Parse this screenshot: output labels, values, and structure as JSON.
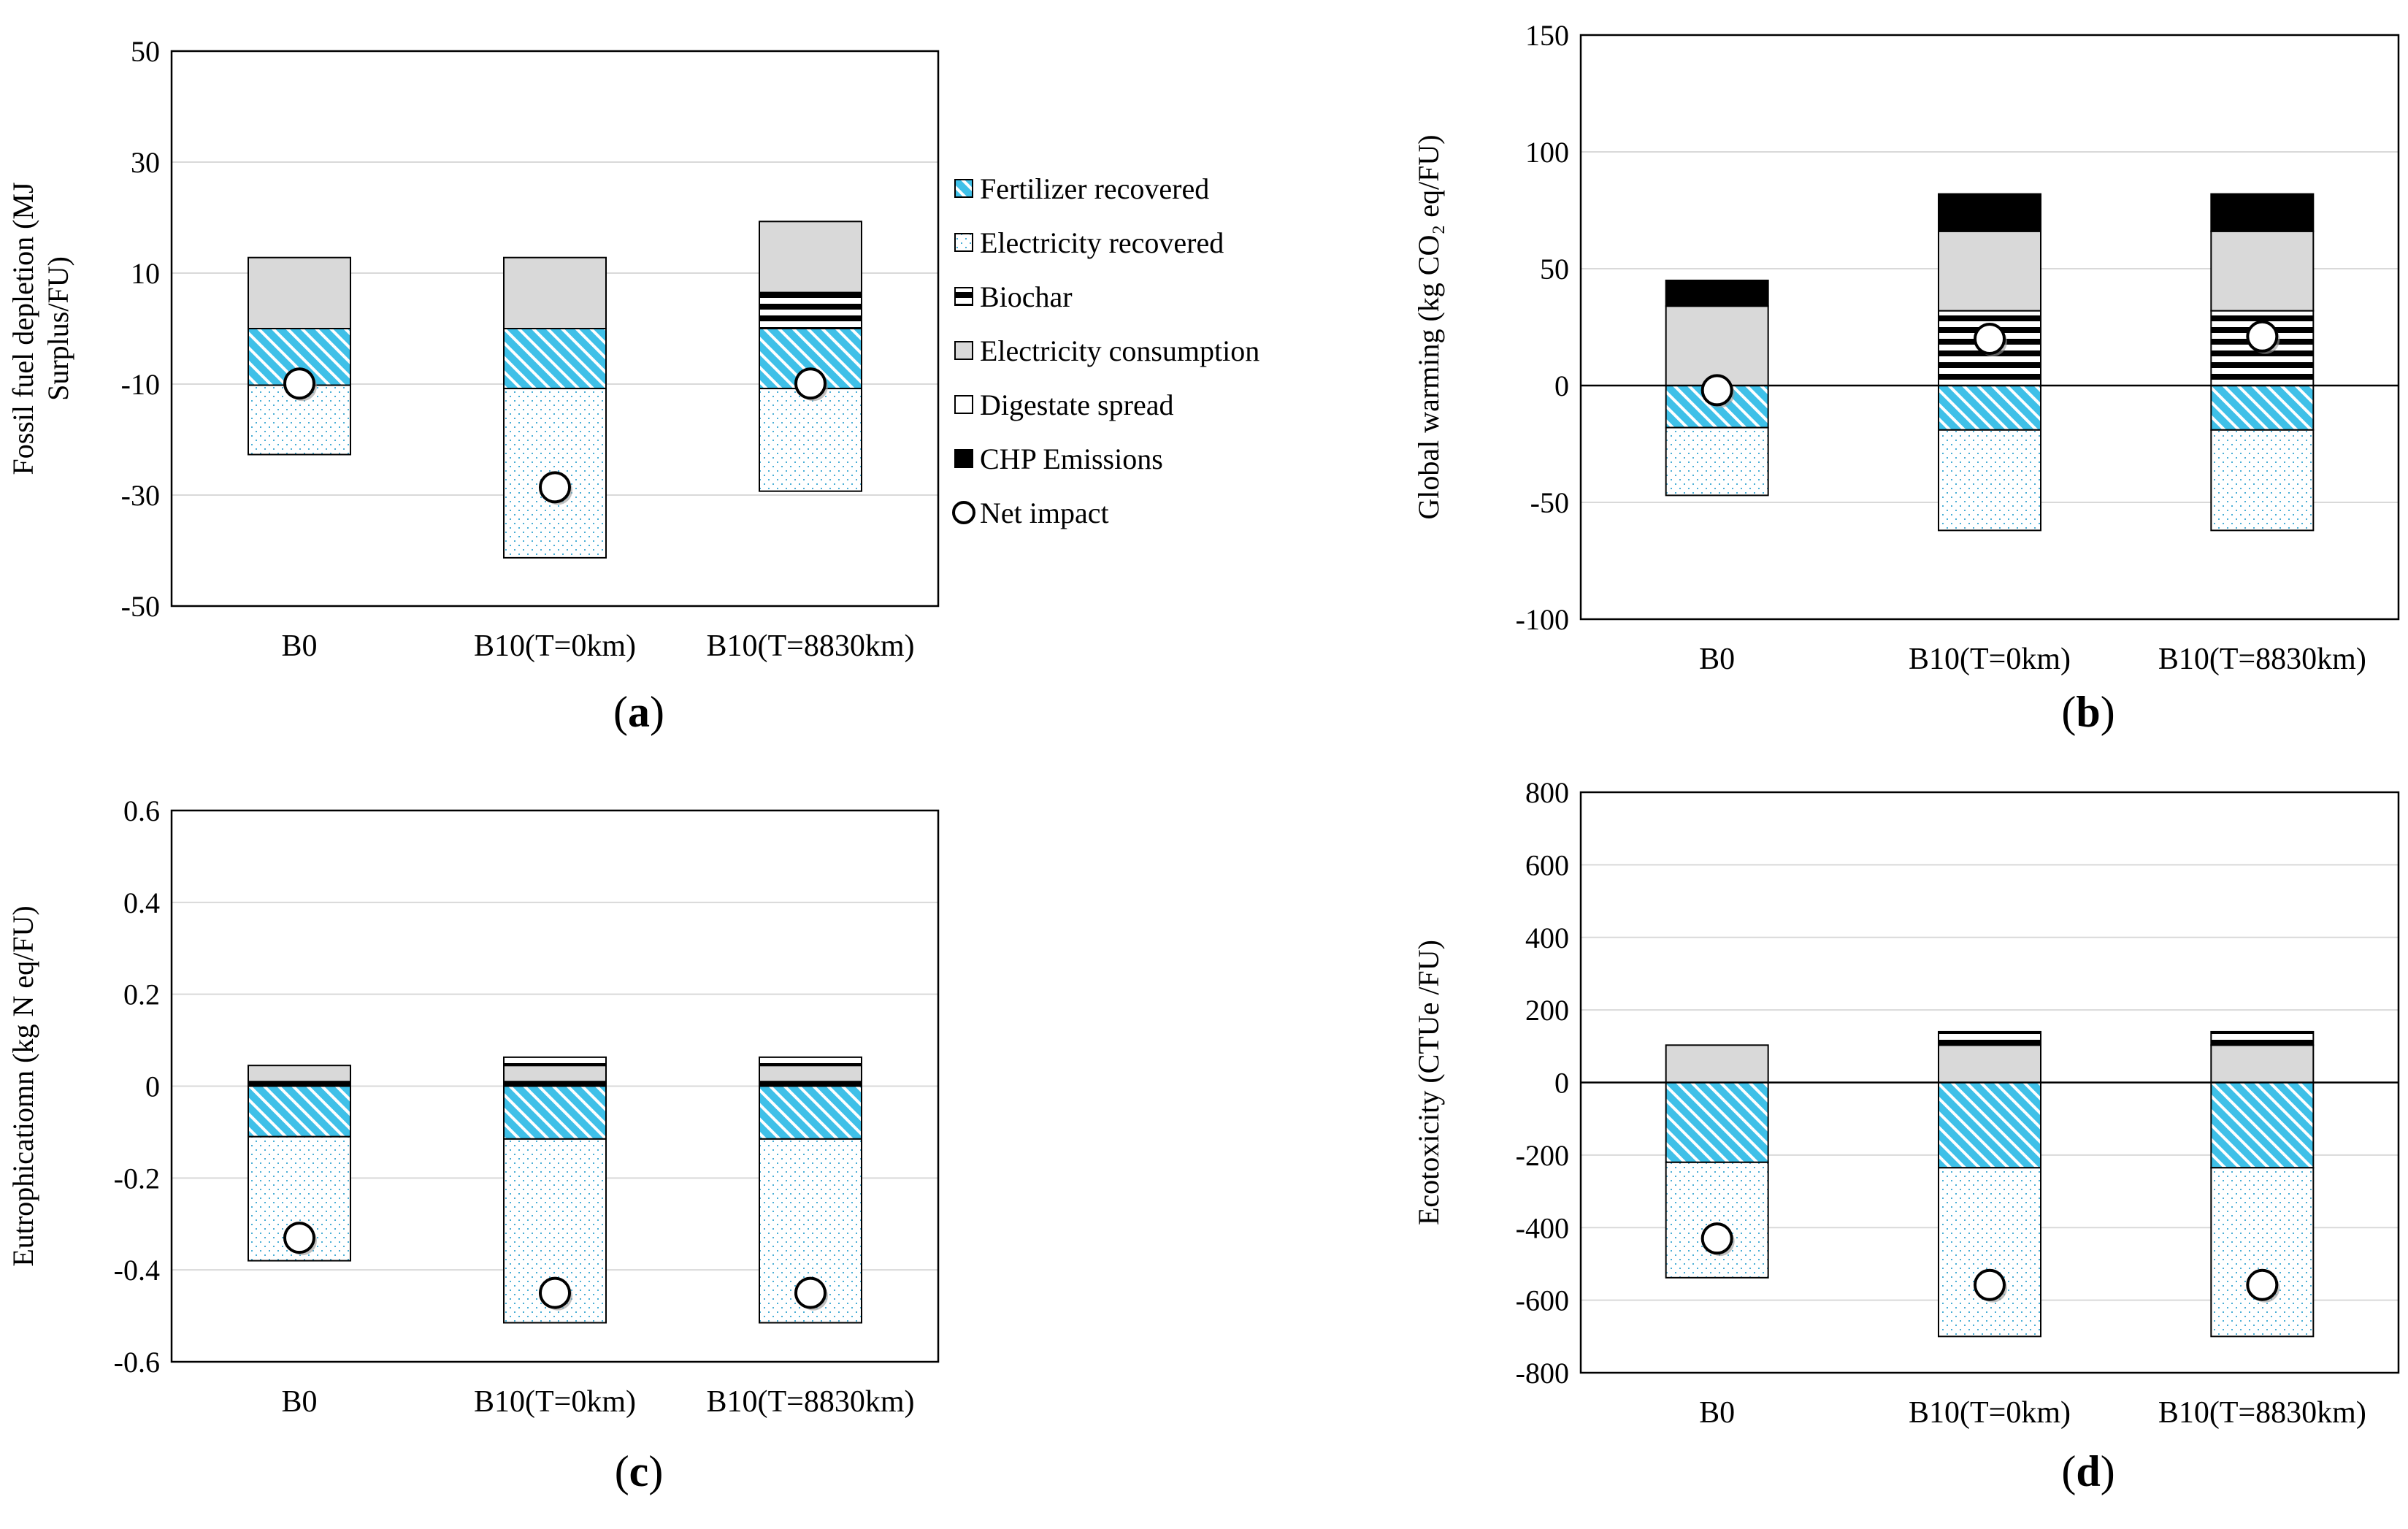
{
  "colors": {
    "fertilizer": "#3fc0e8",
    "electricity_recovered_dot": "#4aaed6",
    "biochar": "#000000",
    "electricity_consumption": "#d9d9d9",
    "digestate": "#ffffff",
    "chp": "#000000",
    "gridline": "#d9d9d9",
    "axis": "#000000"
  },
  "legend": {
    "items": [
      {
        "key": "fertilizer",
        "label": "Fertilizer recovered",
        "pattern": "hatch"
      },
      {
        "key": "electricity_recovered",
        "label": "Electricity recovered",
        "pattern": "dots"
      },
      {
        "key": "biochar",
        "label": "Biochar",
        "pattern": "stripes"
      },
      {
        "key": "electricity_consumption",
        "label": "Electricity consumption",
        "pattern": "grey"
      },
      {
        "key": "digestate",
        "label": "Digestate spread",
        "pattern": "white"
      },
      {
        "key": "chp",
        "label": "CHP Emissions",
        "pattern": "black"
      },
      {
        "key": "net",
        "label": "Net impact",
        "pattern": "circle"
      }
    ]
  },
  "chart_data": [
    {
      "id": "a",
      "type": "bar",
      "stacked": true,
      "panel_label": "a",
      "ylabel_lines": [
        "Fossil fuel depletion (MJ",
        "Surplus/FU)"
      ],
      "ylim": [
        -50,
        50
      ],
      "yticks": [
        50,
        30,
        10,
        -10,
        -30,
        -50
      ],
      "zero_line": false,
      "categories": [
        "B0",
        "B10(T=0km)",
        "B10(T=8830km)"
      ],
      "series": [
        {
          "key": "fertilizer",
          "name": "Fertilizer recovered",
          "values": [
            -10.2,
            -10.8,
            -10.8
          ]
        },
        {
          "key": "electricity_recovered",
          "name": "Electricity recovered",
          "values": [
            -12.5,
            -30.5,
            -18.5
          ]
        },
        {
          "key": "biochar",
          "name": "Biochar",
          "values": [
            0,
            0,
            6.5
          ]
        },
        {
          "key": "electricity_consumption",
          "name": "Electricity consumption",
          "values": [
            12.8,
            12.8,
            12.8
          ]
        },
        {
          "key": "digestate",
          "name": "Digestate spread",
          "values": [
            0,
            0,
            0
          ]
        },
        {
          "key": "chp",
          "name": "CHP Emissions",
          "values": [
            0,
            0,
            0
          ]
        }
      ],
      "net": [
        -9.9,
        -28.6,
        -9.9
      ]
    },
    {
      "id": "b",
      "type": "bar",
      "stacked": true,
      "panel_label": "b",
      "ylabel_lines": [
        "Global warming (kg CO₂ eq/FU)"
      ],
      "ylim": [
        -100,
        150
      ],
      "yticks": [
        150,
        100,
        50,
        0,
        -50,
        -100
      ],
      "zero_line": true,
      "categories": [
        "B0",
        "B10(T=0km)",
        "B10(T=8830km)"
      ],
      "series": [
        {
          "key": "fertilizer",
          "name": "Fertilizer recovered",
          "values": [
            -18,
            -19,
            -19
          ]
        },
        {
          "key": "electricity_recovered",
          "name": "Electricity recovered",
          "values": [
            -29,
            -43,
            -43
          ]
        },
        {
          "key": "biochar",
          "name": "Biochar",
          "values": [
            0,
            32,
            32
          ]
        },
        {
          "key": "electricity_consumption",
          "name": "Electricity consumption",
          "values": [
            34,
            34,
            34
          ]
        },
        {
          "key": "digestate",
          "name": "Digestate spread",
          "values": [
            0,
            0,
            0
          ]
        },
        {
          "key": "chp",
          "name": "CHP Emissions",
          "values": [
            11,
            16,
            16
          ]
        }
      ],
      "net": [
        -2,
        20,
        21
      ]
    },
    {
      "id": "c",
      "type": "bar",
      "stacked": true,
      "panel_label": "c",
      "ylabel_lines": [
        "Eutrophicatiomn (kg N eq/FU)"
      ],
      "ylim": [
        -0.6,
        0.6
      ],
      "yticks": [
        "0.6",
        "0.4",
        "0.2",
        "0",
        "-0.2",
        "-0.4",
        "-0.6"
      ],
      "zero_line": false,
      "categories": [
        "B0",
        "B10(T=0km)",
        "B10(T=8830km)"
      ],
      "series": [
        {
          "key": "fertilizer",
          "name": "Fertilizer recovered",
          "values": [
            -0.11,
            -0.115,
            -0.115
          ]
        },
        {
          "key": "electricity_recovered",
          "name": "Electricity recovered",
          "values": [
            -0.27,
            -0.4,
            -0.4
          ]
        },
        {
          "key": "chp",
          "name": "CHP Emissions",
          "values": [
            0.01,
            0.01,
            0.01
          ]
        },
        {
          "key": "electricity_consumption",
          "name": "Electricity consumption",
          "values": [
            0.035,
            0.035,
            0.035
          ]
        },
        {
          "key": "biochar",
          "name": "Biochar",
          "values": [
            0,
            0.018,
            0.018
          ]
        },
        {
          "key": "digestate",
          "name": "Digestate spread",
          "values": [
            0,
            0,
            0
          ]
        }
      ],
      "net": [
        -0.33,
        -0.45,
        -0.45
      ]
    },
    {
      "id": "d",
      "type": "bar",
      "stacked": true,
      "panel_label": "d",
      "ylabel_lines": [
        "Ecotoxicity  (CTUe /FU)"
      ],
      "ylim": [
        -800,
        800
      ],
      "yticks": [
        800,
        600,
        400,
        200,
        0,
        -200,
        -400,
        -600,
        -800
      ],
      "zero_line": true,
      "categories": [
        "B0",
        "B10(T=0km)",
        "B10(T=8830km)"
      ],
      "series": [
        {
          "key": "fertilizer",
          "name": "Fertilizer recovered",
          "values": [
            -220,
            -235,
            -235
          ]
        },
        {
          "key": "electricity_recovered",
          "name": "Electricity recovered",
          "values": [
            -318,
            -465,
            -465
          ]
        },
        {
          "key": "electricity_consumption",
          "name": "Electricity consumption",
          "values": [
            103,
            103,
            103
          ]
        },
        {
          "key": "biochar",
          "name": "Biochar",
          "values": [
            0,
            37,
            37
          ]
        },
        {
          "key": "digestate",
          "name": "Digestate spread",
          "values": [
            0,
            0,
            0
          ]
        },
        {
          "key": "chp",
          "name": "CHP Emissions",
          "values": [
            0,
            0,
            0
          ]
        }
      ],
      "net": [
        -430,
        -558,
        -558
      ]
    }
  ]
}
